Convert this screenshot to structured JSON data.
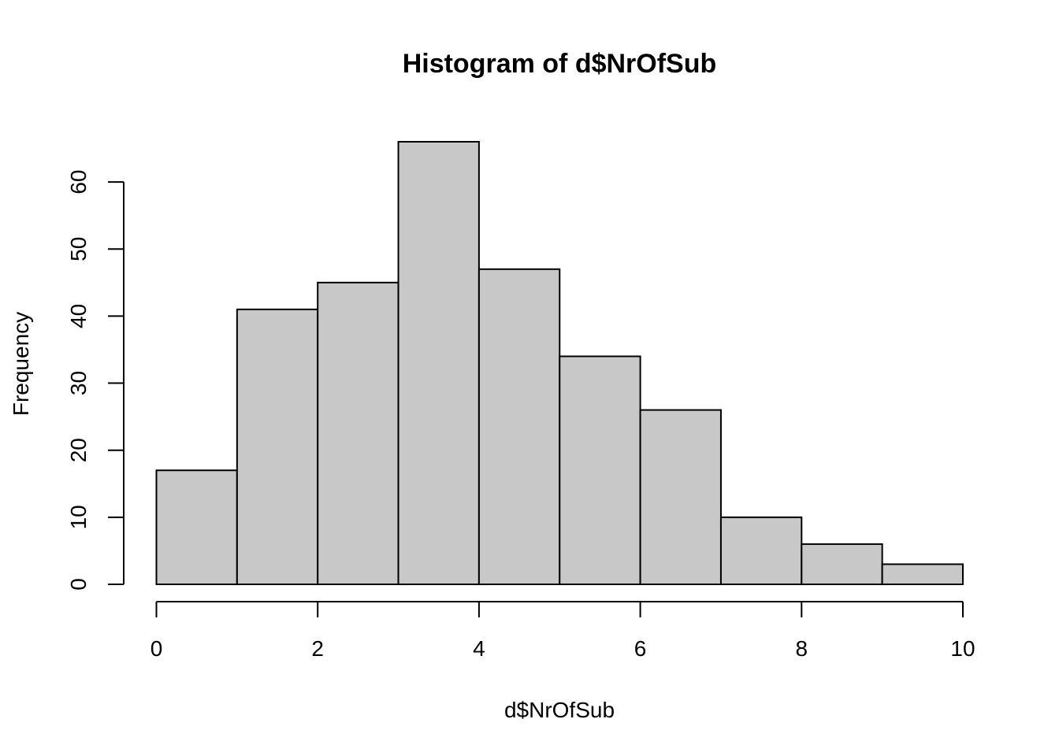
{
  "chart_data": {
    "type": "bar",
    "title": "Histogram of d$NrOfSub",
    "xlabel": "d$NrOfSub",
    "ylabel": "Frequency",
    "bins": [
      {
        "from": 0,
        "to": 1,
        "count": 17
      },
      {
        "from": 1,
        "to": 2,
        "count": 41
      },
      {
        "from": 2,
        "to": 3,
        "count": 45
      },
      {
        "from": 3,
        "to": 4,
        "count": 66
      },
      {
        "from": 4,
        "to": 5,
        "count": 47
      },
      {
        "from": 5,
        "to": 6,
        "count": 34
      },
      {
        "from": 6,
        "to": 7,
        "count": 26
      },
      {
        "from": 7,
        "to": 8,
        "count": 10
      },
      {
        "from": 8,
        "to": 9,
        "count": 6
      },
      {
        "from": 9,
        "to": 10,
        "count": 3
      }
    ],
    "xlim": [
      0,
      10
    ],
    "ylim": [
      0,
      66
    ],
    "x_ticks": [
      0,
      2,
      4,
      6,
      8,
      10
    ],
    "y_ticks": [
      0,
      10,
      20,
      30,
      40,
      50,
      60
    ],
    "x_tick_labels": [
      "0",
      "2",
      "4",
      "6",
      "8",
      "10"
    ],
    "y_tick_labels": [
      "0",
      "10",
      "20",
      "30",
      "40",
      "50",
      "60"
    ],
    "grid": false,
    "legend": "none",
    "bar_color": "#c8c8c8",
    "edge_color": "#000000"
  }
}
